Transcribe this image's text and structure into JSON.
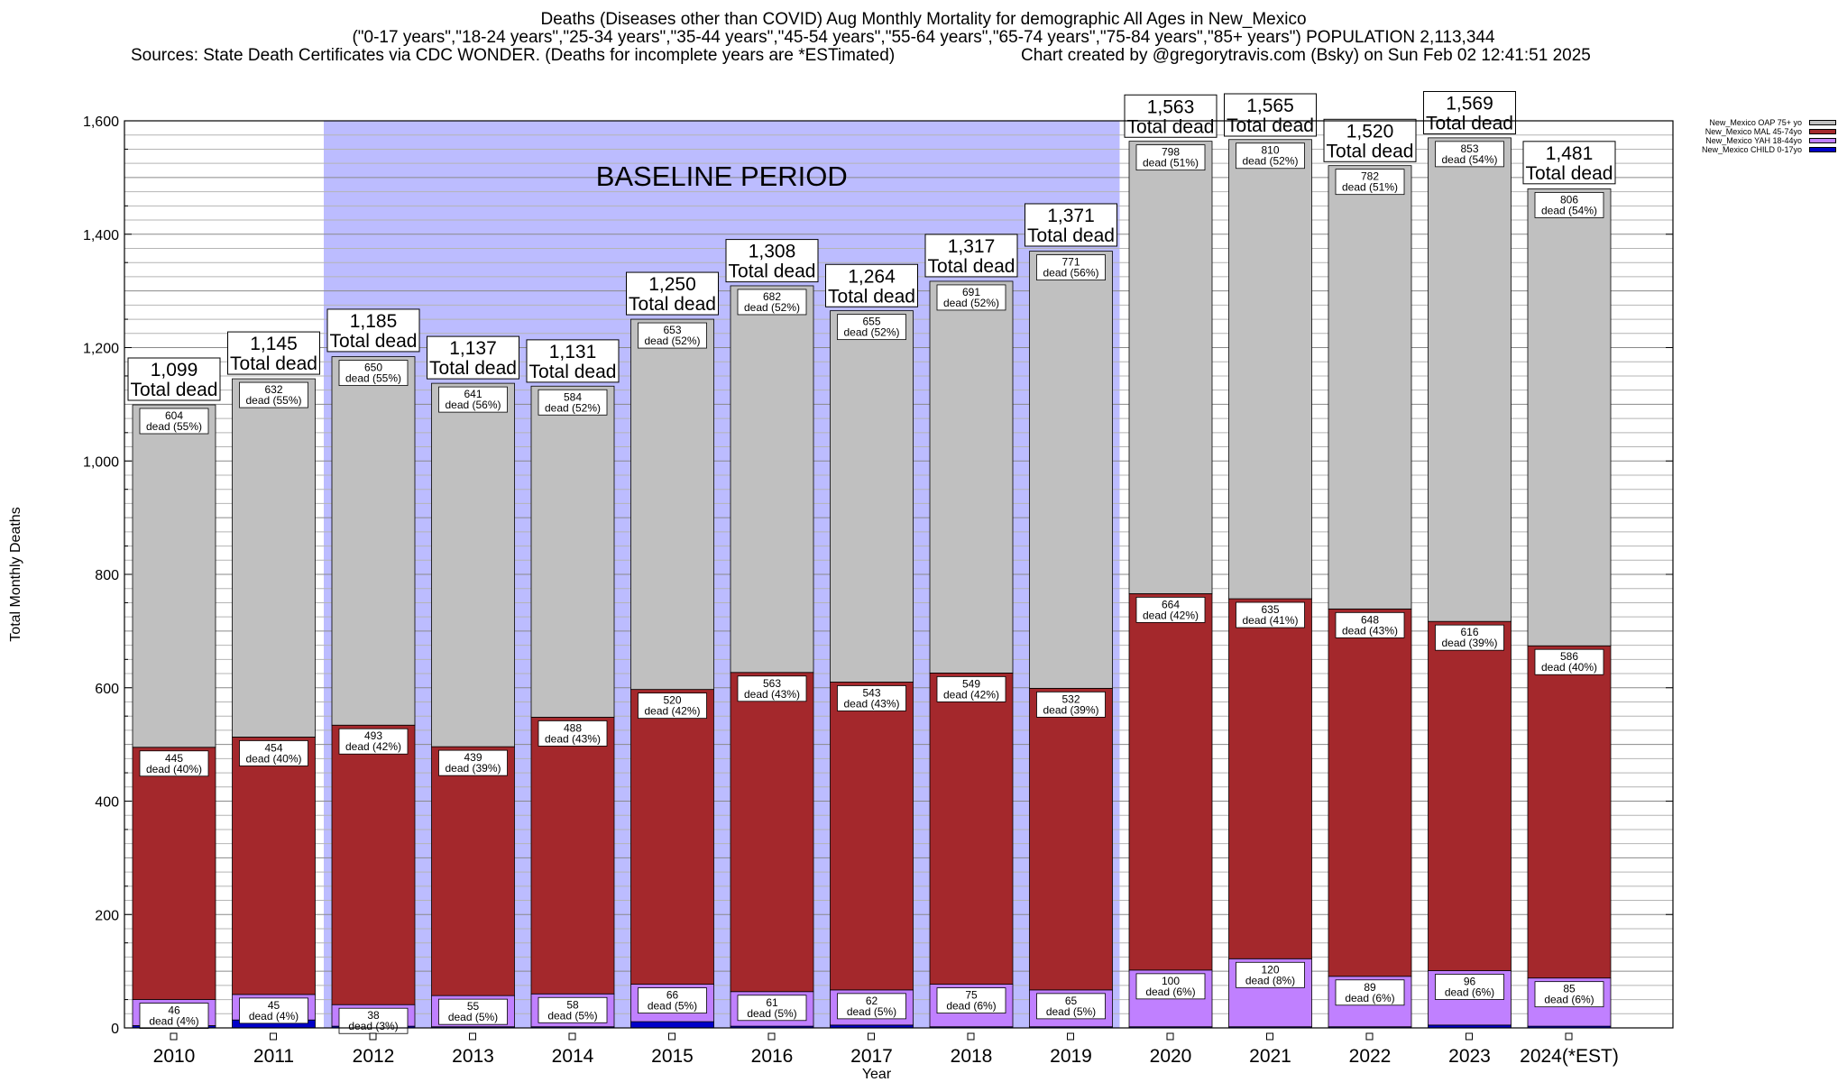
{
  "title": {
    "line1": "Deaths (Diseases other than COVID) Aug Monthly Mortality for demographic All Ages in New_Mexico",
    "line2": "(\"0-17 years\",\"18-24 years\",\"25-34 years\",\"35-44 years\",\"45-54 years\",\"55-64 years\",\"65-74 years\",\"75-84 years\",\"85+ years\") POPULATION 2,113,344",
    "line3_left": "Sources: State Death Certificates via CDC WONDER. (Deaths for incomplete years are *ESTimated)",
    "line3_right": "Chart created by @gregorytravis.com (Bsky) on Sun Feb 02 12:41:51 2025"
  },
  "chart_data": {
    "type": "bar",
    "stacked": true,
    "xlabel": "Year",
    "ylabel": "Total Monthly Deaths",
    "ylim": [
      0,
      1600
    ],
    "yticks": [
      0,
      200,
      400,
      600,
      800,
      1000,
      1200,
      1400,
      1600
    ],
    "ytick_labels": [
      "0",
      "200",
      "400",
      "600",
      "800",
      "1,000",
      "1,200",
      "1,400",
      "1,600"
    ],
    "grid": true,
    "legend_position": "top-right, outside plot",
    "categories": [
      "2010",
      "2011",
      "2012",
      "2013",
      "2014",
      "2015",
      "2016",
      "2017",
      "2018",
      "2019",
      "2020",
      "2021",
      "2022",
      "2023",
      "2024(*EST)"
    ],
    "baseline": {
      "label": "BASELINE PERIOD",
      "from": "2012",
      "to": "2019",
      "color": "#bcbcff"
    },
    "series": [
      {
        "name": "New_Mexico CHILD 0-17yo",
        "color": "#0000c8",
        "values": [
          4,
          14,
          3,
          2,
          2,
          11,
          3,
          5,
          2,
          2,
          2,
          2,
          2,
          5,
          3
        ]
      },
      {
        "name": "New_Mexico YAH 18-44yo",
        "color": "#c080ff",
        "values": [
          46,
          45,
          38,
          55,
          58,
          66,
          61,
          62,
          75,
          65,
          100,
          120,
          89,
          96,
          85
        ]
      },
      {
        "name": "New_Mexico MAL 45-74yo",
        "color": "#a4282c",
        "values": [
          445,
          454,
          493,
          439,
          488,
          520,
          563,
          543,
          549,
          532,
          664,
          635,
          648,
          616,
          586
        ]
      },
      {
        "name": "New_Mexico OAP 75+ yo",
        "color": "#c0c0c0",
        "values": [
          604,
          632,
          650,
          641,
          584,
          653,
          682,
          655,
          691,
          771,
          798,
          810,
          782,
          853,
          806
        ]
      }
    ],
    "totals": [
      1099,
      1145,
      1185,
      1137,
      1131,
      1250,
      1308,
      1264,
      1317,
      1371,
      1563,
      1565,
      1520,
      1569,
      1481
    ],
    "total_labels": [
      "1,099",
      "1,145",
      "1,185",
      "1,137",
      "1,131",
      "1,250",
      "1,308",
      "1,264",
      "1,317",
      "1,371",
      "1,563",
      "1,565",
      "1,520",
      "1,569",
      "1,481"
    ],
    "total_suffix": "Total dead",
    "segment_labels": {
      "oap": [
        "604\ndead (55%)",
        "632\ndead (55%)",
        "650\ndead (55%)",
        "641\ndead (56%)",
        "584\ndead (52%)",
        "653\ndead (52%)",
        "682\ndead (52%)",
        "655\ndead (52%)",
        "691\ndead (52%)",
        "771\ndead (56%)",
        "798\ndead (51%)",
        "810\ndead (52%)",
        "782\ndead (51%)",
        "853\ndead (54%)",
        "806\ndead (54%)"
      ],
      "mal": [
        "445\ndead (40%)",
        "454\ndead (40%)",
        "493\ndead (42%)",
        "439\ndead (39%)",
        "488\ndead (43%)",
        "520\ndead (42%)",
        "563\ndead (43%)",
        "543\ndead (43%)",
        "549\ndead (42%)",
        "532\ndead (39%)",
        "664\ndead (42%)",
        "635\ndead (41%)",
        "648\ndead (43%)",
        "616\ndead (39%)",
        "586\ndead (40%)"
      ],
      "yah": [
        "46\ndead (4%)",
        "45\ndead (4%)",
        "38\ndead (3%)",
        "55\ndead (5%)",
        "58\ndead (5%)",
        "66\ndead (5%)",
        "61\ndead (5%)",
        "62\ndead (5%)",
        "75\ndead (6%)",
        "65\ndead (5%)",
        "100\ndead (6%)",
        "120\ndead (8%)",
        "89\ndead (6%)",
        "96\ndead (6%)",
        "85\ndead (6%)"
      ]
    }
  },
  "legend": [
    {
      "label": "New_Mexico OAP 75+ yo",
      "color": "#c0c0c0"
    },
    {
      "label": "New_Mexico MAL 45-74yo",
      "color": "#a4282c"
    },
    {
      "label": "New_Mexico YAH 18-44yo",
      "color": "#c080ff"
    },
    {
      "label": "New_Mexico CHILD 0-17yo",
      "color": "#0000c8"
    }
  ]
}
